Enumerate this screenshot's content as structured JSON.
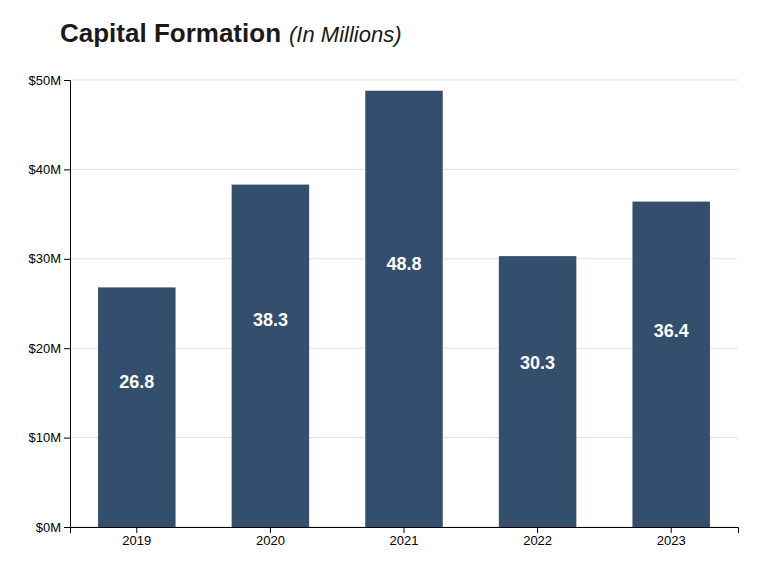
{
  "chart_data": {
    "type": "bar",
    "title": "Capital Formation",
    "subtitle": "(In Millions)",
    "categories": [
      "2019",
      "2020",
      "2021",
      "2022",
      "2023"
    ],
    "values": [
      26.8,
      38.3,
      48.8,
      30.3,
      36.4
    ],
    "color": "#344e6e",
    "ylim": [
      0,
      50
    ],
    "yticks": [
      {
        "value": 0,
        "label": "$0M"
      },
      {
        "value": 10,
        "label": "$10M"
      },
      {
        "value": 20,
        "label": "$20M"
      },
      {
        "value": 30,
        "label": "$30M"
      },
      {
        "value": 40,
        "label": "$40M"
      },
      {
        "value": 50,
        "label": "$50M"
      }
    ],
    "grid": true,
    "data_labels": true
  }
}
